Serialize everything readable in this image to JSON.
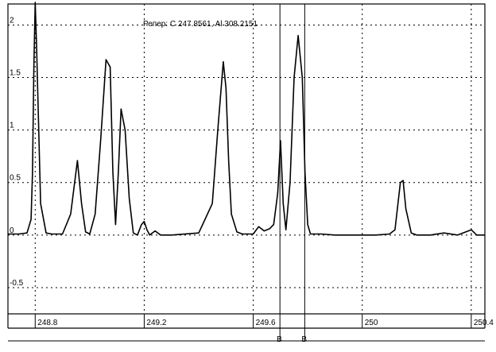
{
  "chart_data": {
    "type": "line",
    "title": "Репер: C  247.8561, Al  308.2151",
    "xlim": [
      248.7,
      250.45
    ],
    "ylim": [
      -0.75,
      2.2
    ],
    "x_ticks": [
      248.8,
      249.2,
      249.6,
      250,
      250.4
    ],
    "x_tick_labels": [
      "248.8",
      "249.2",
      "249.6",
      "250",
      "250.4"
    ],
    "y_ticks": [
      2,
      1.5,
      1,
      0.5,
      0,
      -0.5
    ],
    "y_tick_labels": [
      "2",
      "1.5",
      "1",
      "0.5",
      "0",
      "-0.5"
    ],
    "grid": true,
    "markers": [
      {
        "x": 249.698,
        "label": "B"
      },
      {
        "x": 249.789,
        "label": "B"
      }
    ],
    "series": [
      {
        "x": [
          248.7,
          248.74,
          248.77,
          248.785,
          248.79,
          248.795,
          248.8,
          248.805,
          248.82,
          248.84,
          248.86,
          248.9,
          248.93,
          248.955,
          248.97,
          248.985,
          249.0,
          249.02,
          249.04,
          249.06,
          249.075,
          249.085,
          249.095,
          249.105,
          249.115,
          249.13,
          249.145,
          249.16,
          249.175,
          249.19,
          249.2,
          249.21,
          249.22,
          249.24,
          249.26,
          249.3,
          249.4,
          249.45,
          249.47,
          249.49,
          249.5,
          249.51,
          249.52,
          249.54,
          249.56,
          249.6,
          249.62,
          249.64,
          249.66,
          249.675,
          249.69,
          249.7,
          249.71,
          249.72,
          249.735,
          249.75,
          249.765,
          249.78,
          249.79,
          249.8,
          249.81,
          249.83,
          249.85,
          249.9,
          249.95,
          250,
          250.05,
          250.1,
          250.12,
          250.14,
          250.15,
          250.16,
          250.18,
          250.2,
          250.25,
          250.3,
          250.35,
          250.4,
          250.42,
          250.45
        ],
        "y": [
          0.01,
          0.01,
          0.02,
          0.15,
          0.6,
          1.6,
          2.4,
          1.8,
          0.3,
          0.02,
          0.01,
          0.01,
          0.2,
          0.71,
          0.3,
          0.03,
          0.01,
          0.2,
          0.9,
          1.67,
          1.6,
          0.6,
          0.1,
          0.6,
          1.2,
          1.0,
          0.35,
          0.02,
          0.0,
          0.1,
          0.13,
          0.05,
          0.0,
          0.04,
          0.0,
          0.0,
          0.02,
          0.3,
          1.0,
          1.65,
          1.4,
          0.7,
          0.2,
          0.03,
          0.01,
          0.01,
          0.08,
          0.04,
          0.06,
          0.1,
          0.4,
          0.9,
          0.3,
          0.05,
          0.5,
          1.5,
          1.9,
          1.5,
          0.6,
          0.1,
          0.01,
          0.01,
          0.01,
          0.0,
          0.0,
          0.0,
          0.0,
          0.01,
          0.05,
          0.5,
          0.52,
          0.25,
          0.02,
          0.0,
          0.0,
          0.02,
          0.0,
          0.05,
          0.0,
          0.0
        ]
      }
    ]
  }
}
